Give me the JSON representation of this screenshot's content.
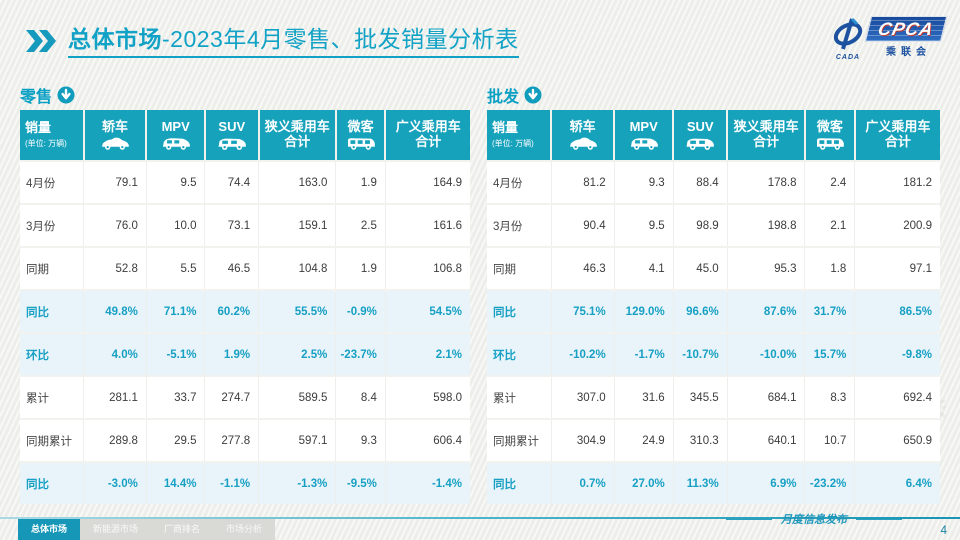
{
  "title": {
    "highlight": "总体市场",
    "rest": "-2023年4月零售、批发销量分析表"
  },
  "logo": {
    "cada": "CADA",
    "cpca": "CPCA",
    "org": "乘联会"
  },
  "watermark": "CPCA 乘联会",
  "columns": [
    {
      "label": "销量",
      "sub": "(单位: 万辆)",
      "icon": null
    },
    {
      "label": "轿车",
      "icon": "sedan-icon"
    },
    {
      "label": "MPV",
      "icon": "mpv-icon"
    },
    {
      "label": "SUV",
      "icon": "suv-icon"
    },
    {
      "label": "狭义乘用车",
      "label2": "合计",
      "icon": null
    },
    {
      "label": "微客",
      "icon": "minibus-icon"
    },
    {
      "label": "广义乘用车",
      "label2": "合计",
      "icon": null
    }
  ],
  "tables": [
    {
      "name": "零售",
      "rows": [
        {
          "label": "4月份",
          "highlight": false,
          "values": [
            "79.1",
            "9.5",
            "74.4",
            "163.0",
            "1.9",
            "164.9"
          ]
        },
        {
          "label": "3月份",
          "highlight": false,
          "values": [
            "76.0",
            "10.0",
            "73.1",
            "159.1",
            "2.5",
            "161.6"
          ]
        },
        {
          "label": "同期",
          "highlight": false,
          "values": [
            "52.8",
            "5.5",
            "46.5",
            "104.8",
            "1.9",
            "106.8"
          ]
        },
        {
          "label": "同比",
          "highlight": true,
          "values": [
            "49.8%",
            "71.1%",
            "60.2%",
            "55.5%",
            "-0.9%",
            "54.5%"
          ]
        },
        {
          "label": "环比",
          "highlight": true,
          "values": [
            "4.0%",
            "-5.1%",
            "1.9%",
            "2.5%",
            "-23.7%",
            "2.1%"
          ]
        },
        {
          "label": "累计",
          "highlight": false,
          "values": [
            "281.1",
            "33.7",
            "274.7",
            "589.5",
            "8.4",
            "598.0"
          ]
        },
        {
          "label": "同期累计",
          "highlight": false,
          "values": [
            "289.8",
            "29.5",
            "277.8",
            "597.1",
            "9.3",
            "606.4"
          ]
        },
        {
          "label": "同比",
          "highlight": true,
          "values": [
            "-3.0%",
            "14.4%",
            "-1.1%",
            "-1.3%",
            "-9.5%",
            "-1.4%"
          ]
        }
      ]
    },
    {
      "name": "批发",
      "rows": [
        {
          "label": "4月份",
          "highlight": false,
          "values": [
            "81.2",
            "9.3",
            "88.4",
            "178.8",
            "2.4",
            "181.2"
          ]
        },
        {
          "label": "3月份",
          "highlight": false,
          "values": [
            "90.4",
            "9.5",
            "98.9",
            "198.8",
            "2.1",
            "200.9"
          ]
        },
        {
          "label": "同期",
          "highlight": false,
          "values": [
            "46.3",
            "4.1",
            "45.0",
            "95.3",
            "1.8",
            "97.1"
          ]
        },
        {
          "label": "同比",
          "highlight": true,
          "values": [
            "75.1%",
            "129.0%",
            "96.6%",
            "87.6%",
            "31.7%",
            "86.5%"
          ]
        },
        {
          "label": "环比",
          "highlight": true,
          "values": [
            "-10.2%",
            "-1.7%",
            "-10.7%",
            "-10.0%",
            "15.7%",
            "-9.8%"
          ]
        },
        {
          "label": "累计",
          "highlight": false,
          "values": [
            "307.0",
            "31.6",
            "345.5",
            "684.1",
            "8.3",
            "692.4"
          ]
        },
        {
          "label": "同期累计",
          "highlight": false,
          "values": [
            "304.9",
            "24.9",
            "310.3",
            "640.1",
            "10.7",
            "650.9"
          ]
        },
        {
          "label": "同比",
          "highlight": true,
          "values": [
            "0.7%",
            "27.0%",
            "11.3%",
            "6.9%",
            "-23.2%",
            "6.4%"
          ]
        }
      ]
    }
  ],
  "footer": {
    "tabs": [
      {
        "label": "总体市场",
        "active": true
      },
      {
        "label": "新能源市场",
        "active": false
      },
      {
        "label": "厂商排名",
        "active": false
      },
      {
        "label": "市场分析",
        "active": false
      }
    ],
    "publish": "月度信息发布",
    "page": "4"
  }
}
